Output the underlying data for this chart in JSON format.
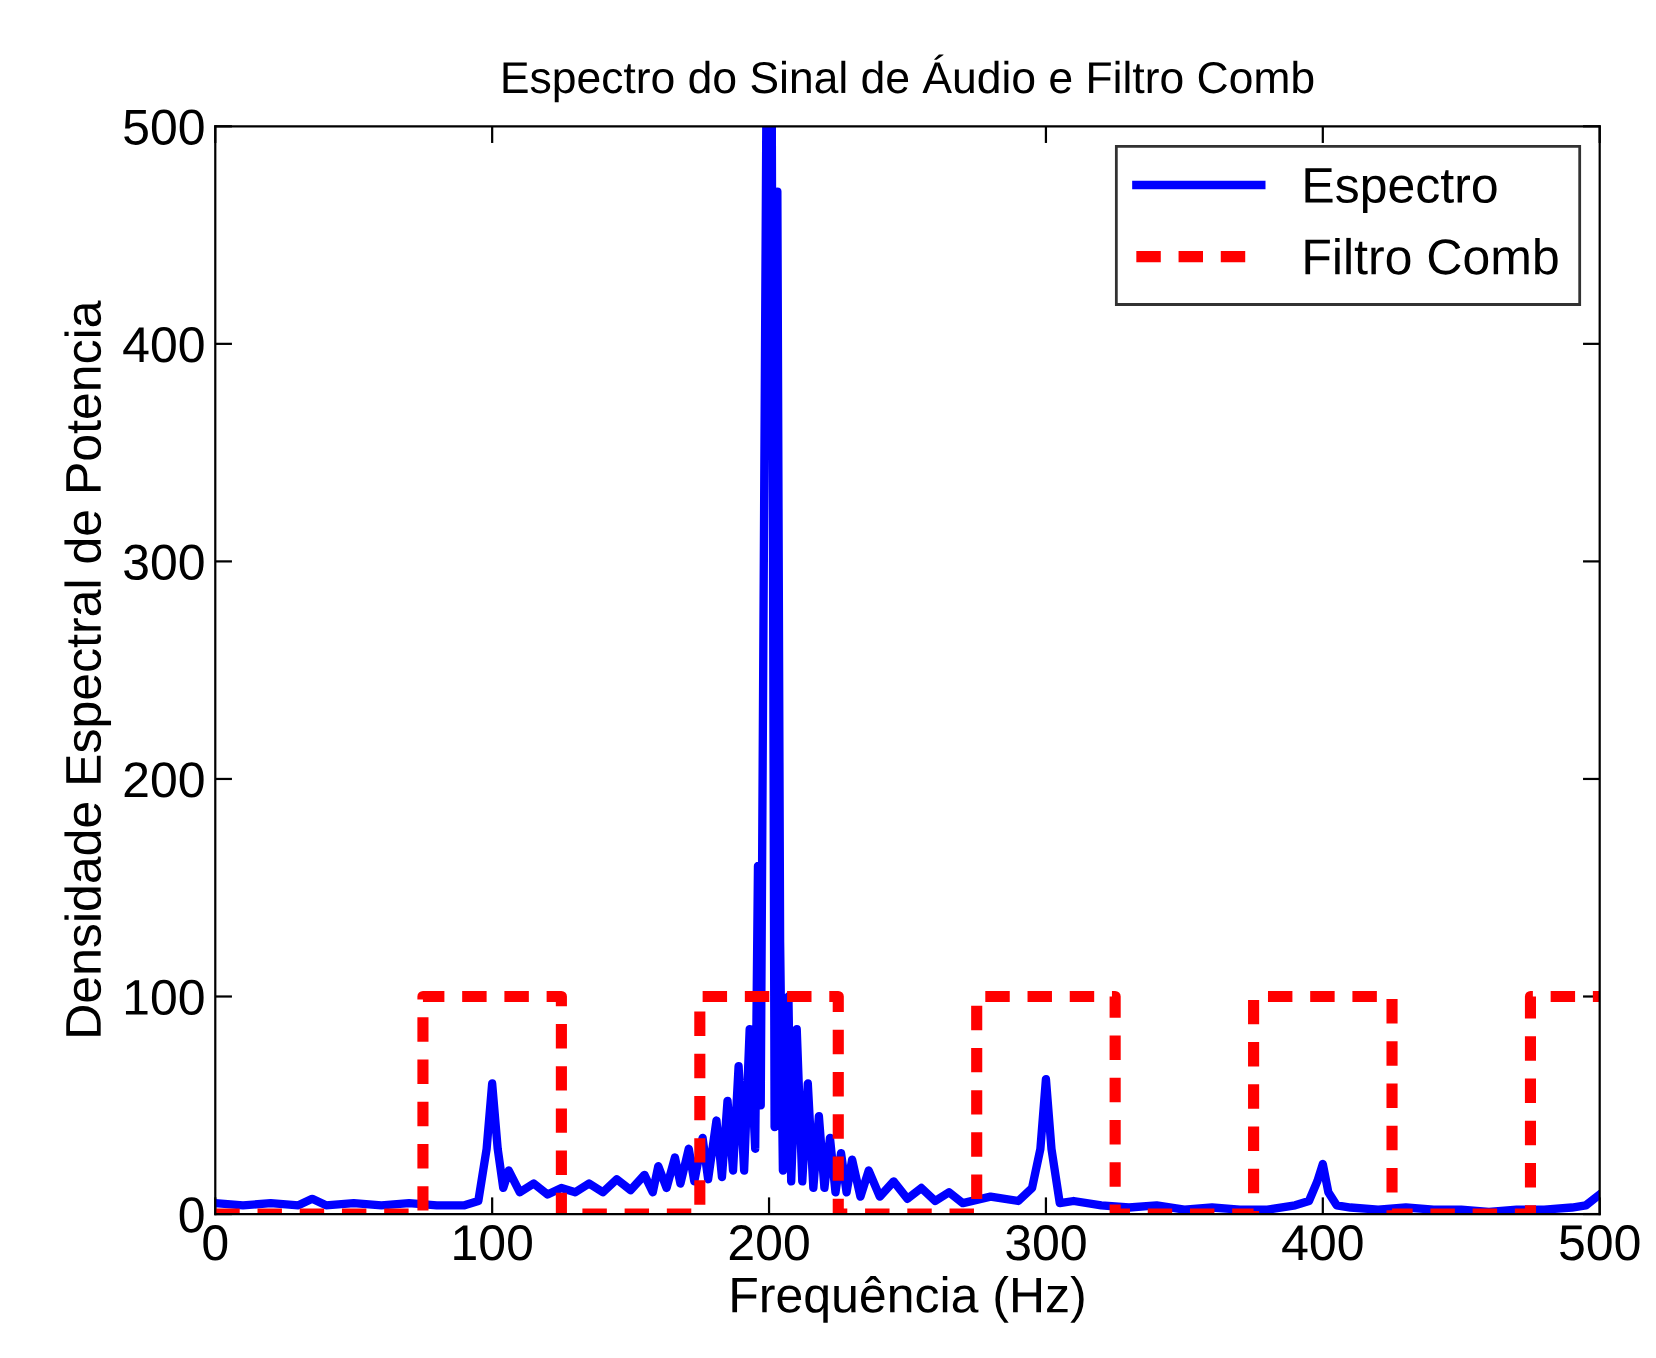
{
  "chart_data": {
    "type": "line",
    "title": "Espectro do Sinal de Áudio e Filtro Comb",
    "xlabel": "Frequência (Hz)",
    "ylabel": "Densidade Espectral de Potencia",
    "xlim": [
      0,
      500
    ],
    "ylim": [
      0,
      500
    ],
    "xticks": [
      0,
      100,
      200,
      300,
      400,
      500
    ],
    "yticks": [
      0,
      100,
      200,
      300,
      400,
      500
    ],
    "grid": false,
    "legend": "top right",
    "series": [
      {
        "name": "Espectro",
        "color": "#0000ff",
        "line_style": "solid",
        "x": [
          0,
          10,
          20,
          30,
          35,
          40,
          50,
          60,
          70,
          80,
          90,
          95,
          98,
          100,
          102,
          104,
          106,
          110,
          115,
          120,
          125,
          130,
          135,
          140,
          145,
          150,
          155,
          158,
          160,
          163,
          166,
          168,
          171,
          173,
          176,
          178,
          181,
          183,
          185,
          187,
          189,
          191,
          193,
          195,
          196,
          197,
          199,
          201,
          202,
          203,
          204,
          205,
          207,
          208,
          210,
          212,
          214,
          216,
          218,
          220,
          222,
          224,
          226,
          228,
          230,
          233,
          236,
          240,
          245,
          250,
          255,
          260,
          265,
          270,
          280,
          290,
          295,
          298,
          300,
          302,
          305,
          310,
          320,
          330,
          340,
          350,
          360,
          370,
          380,
          390,
          395,
          398,
          400,
          402,
          405,
          410,
          420,
          430,
          440,
          450,
          460,
          470,
          480,
          490,
          495,
          500
        ],
        "values": [
          5,
          4,
          5,
          4,
          7,
          4,
          5,
          4,
          5,
          4,
          4,
          6,
          30,
          60,
          30,
          12,
          20,
          10,
          14,
          9,
          12,
          10,
          14,
          10,
          16,
          11,
          18,
          10,
          22,
          12,
          26,
          14,
          30,
          15,
          35,
          16,
          43,
          17,
          52,
          20,
          68,
          20,
          85,
          30,
          160,
          50,
          500,
          500,
          40,
          470,
          125,
          20,
          100,
          15,
          85,
          15,
          60,
          12,
          45,
          12,
          35,
          10,
          28,
          10,
          25,
          8,
          20,
          8,
          15,
          7,
          12,
          6,
          10,
          5,
          8,
          6,
          12,
          30,
          62,
          30,
          5,
          6,
          4,
          3,
          4,
          2,
          3,
          2,
          2,
          4,
          6,
          15,
          23,
          10,
          4,
          3,
          2,
          3,
          2,
          2,
          1,
          2,
          2,
          3,
          4,
          9
        ]
      },
      {
        "name": "Filtro Comb",
        "color": "#ff0000",
        "line_style": "dashed",
        "x": [
          0,
          75,
          75,
          125,
          125,
          175,
          175,
          225,
          225,
          275,
          275,
          325,
          325,
          375,
          375,
          425,
          425,
          475,
          475,
          500
        ],
        "values": [
          0,
          0,
          100,
          100,
          0,
          0,
          100,
          100,
          0,
          0,
          100,
          100,
          0,
          0,
          100,
          100,
          0,
          0,
          100,
          100
        ]
      }
    ]
  }
}
